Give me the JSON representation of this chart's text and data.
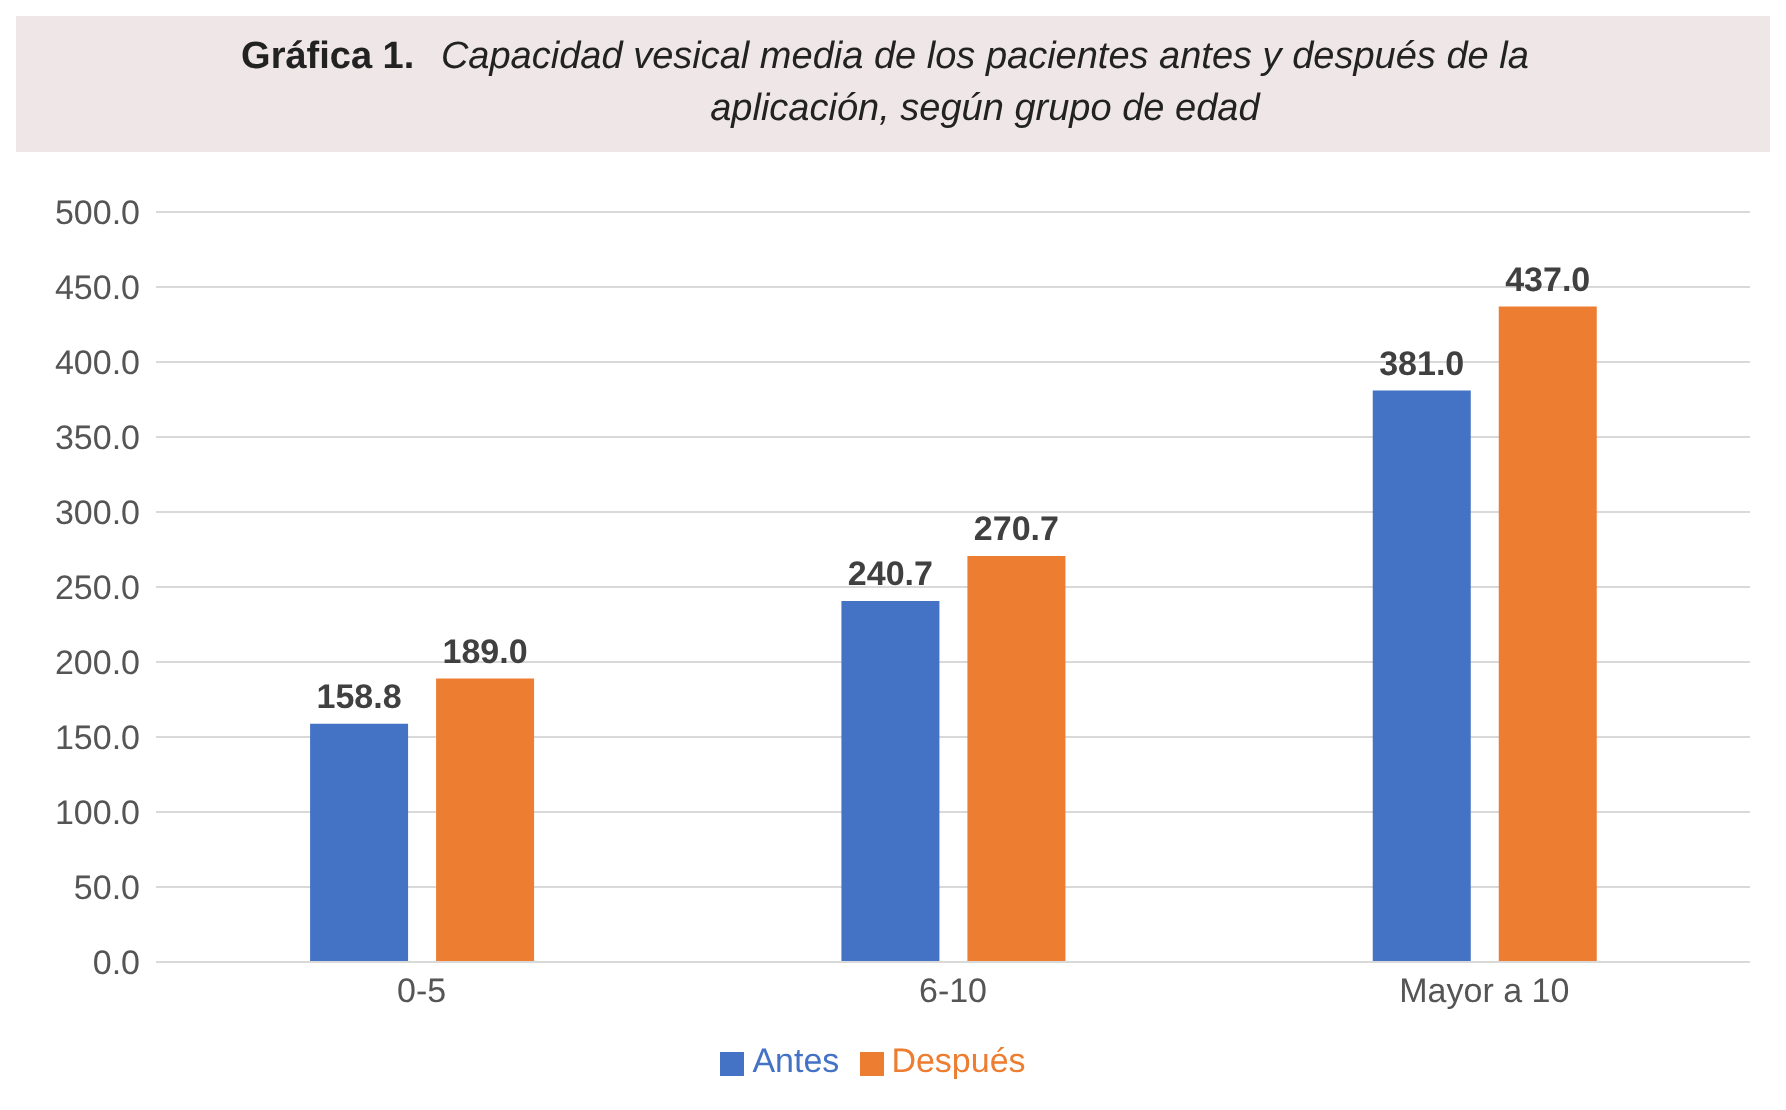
{
  "chart_data": {
    "type": "bar",
    "title": "Gráfica 1.",
    "subtitle": "Capacidad vesical media de los pacientes antes y después de la aplicación, según grupo de edad",
    "categories": [
      "0-5",
      "6-10",
      "Mayor a 10"
    ],
    "series": [
      {
        "name": "Antes",
        "color": "#4472c4",
        "values": [
          158.8,
          240.7,
          381.0
        ],
        "value_labels": [
          "158.8",
          "240.7",
          "381.0"
        ]
      },
      {
        "name": "Después",
        "color": "#ed7d31",
        "values": [
          189.0,
          270.7,
          437.0
        ],
        "value_labels": [
          "189.0",
          "270.7",
          "437.0"
        ]
      }
    ],
    "ylim": [
      0,
      500
    ],
    "yticks": [
      {
        "value": 0,
        "label": "0.0"
      },
      {
        "value": 50,
        "label": "50.0"
      },
      {
        "value": 100,
        "label": "100.0"
      },
      {
        "value": 150,
        "label": "150.0"
      },
      {
        "value": 200,
        "label": "200.0"
      },
      {
        "value": 250,
        "label": "250.0"
      },
      {
        "value": 300,
        "label": "300.0"
      },
      {
        "value": 350,
        "label": "350.0"
      },
      {
        "value": 400,
        "label": "400.0"
      },
      {
        "value": 450,
        "label": "450.0"
      },
      {
        "value": 500,
        "label": "500.0"
      }
    ],
    "grid": "y",
    "legend": "bottom"
  }
}
